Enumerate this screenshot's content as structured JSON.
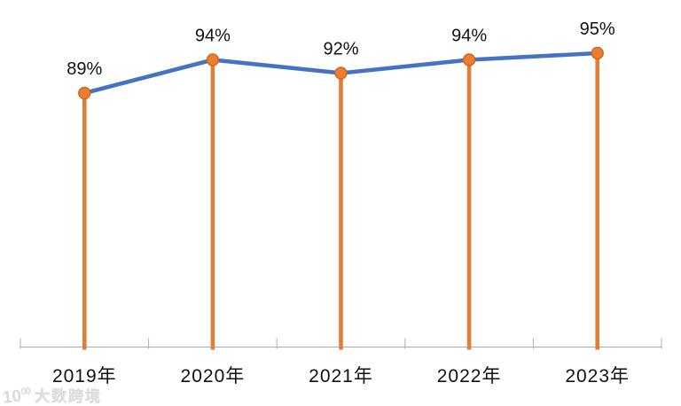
{
  "watermark": {
    "logo_main": "10",
    "logo_sup": "00",
    "brand": "大数跨境"
  },
  "chart_data": {
    "type": "line",
    "title": "",
    "xlabel": "",
    "ylabel": "",
    "categories": [
      "2019年",
      "2020年",
      "2021年",
      "2022年",
      "2023年"
    ],
    "series": [
      {
        "name": "",
        "values": [
          89,
          94,
          92,
          94,
          95
        ]
      }
    ],
    "data_labels": [
      "89%",
      "94%",
      "92%",
      "94%",
      "95%"
    ],
    "ylim": [
      51,
      100
    ],
    "y_axis_visible": false,
    "gridlines": false,
    "legend": false,
    "marker_style": "circle-on-stem",
    "line_color": "#4472C4",
    "marker_color": "#ED7D31",
    "marker_border_color": "#C9691F",
    "stem_color": "#E07E39",
    "axis_color": "#ACACAC",
    "label_color": "#111111"
  }
}
